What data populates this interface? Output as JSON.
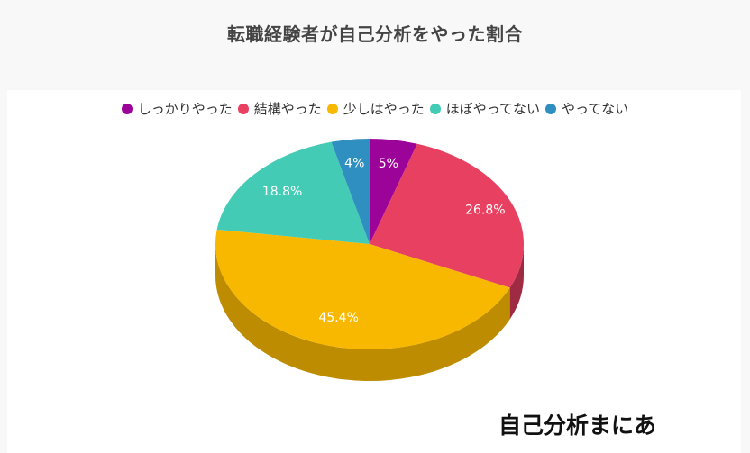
{
  "brand": {
    "logo_text": "自己分析まにあ"
  },
  "chart_data": {
    "type": "pie",
    "title": "転職経験者が自己分析をやった割合",
    "categories": [
      "しっかりやった",
      "結構やった",
      "少しはやった",
      "ほぼやってない",
      "やってない"
    ],
    "values": [
      5,
      26.8,
      45.4,
      18.8,
      4
    ],
    "labels": [
      "5%",
      "26.8%",
      "45.4%",
      "18.8%",
      "4%"
    ],
    "colors": [
      "#9c0399",
      "#e84060",
      "#f8b800",
      "#43cbb5",
      "#2f8fc0"
    ],
    "side_colors": [
      "#6a0268",
      "#9e2b41",
      "#bd8c00",
      "#2e8a7a",
      "#206183"
    ],
    "legend_position": "top",
    "three_d": true
  }
}
